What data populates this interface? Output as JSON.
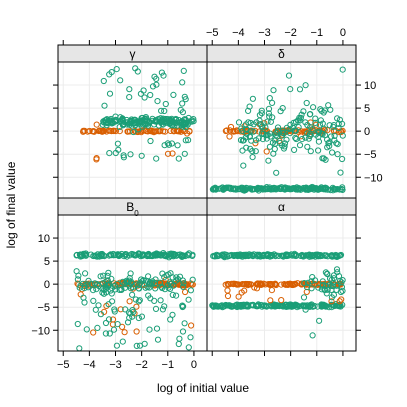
{
  "chart_data": {
    "type": "scatter",
    "layout": "2x2 lattice panels",
    "xlabel": "log of initial value",
    "ylabel": "log of final value",
    "xlim": [
      -5.2,
      0.5
    ],
    "ylim": [
      -14.5,
      15
    ],
    "x_ticks": [
      -5,
      -4,
      -3,
      -2,
      -1,
      0
    ],
    "y_ticks": [
      -10,
      -5,
      0,
      5,
      10
    ],
    "grid": true,
    "colors": {
      "mean": "#1b9e77",
      "median": "#d95f02",
      "strip_bg": "#e6e6e6",
      "grid": "#ececec"
    },
    "panels": [
      {
        "id": "gamma",
        "label": "γ",
        "row": 0,
        "col": 0,
        "series": [
          {
            "color": "#d95f02",
            "x_range": [
              -4.3,
              0
            ],
            "y_center": 0,
            "spread": 0.15,
            "count": 70,
            "outlier_count": 6,
            "outlier_y_range": [
              -8,
              2
            ]
          },
          {
            "color": "#1b9e77",
            "x_range": [
              -3.5,
              0
            ],
            "y_center": 2,
            "spread": 0.8,
            "count": 160,
            "outlier_count": 60,
            "outlier_y_range": [
              -6,
              14
            ]
          }
        ]
      },
      {
        "id": "delta",
        "label": "δ",
        "row": 0,
        "col": 1,
        "series": [
          {
            "color": "#1b9e77",
            "x_range": [
              -5,
              0
            ],
            "y_center": -12.5,
            "spread": 0.25,
            "count": 170,
            "outlier_count": 0,
            "outlier_y_range": [
              -12,
              -12
            ]
          },
          {
            "color": "#d95f02",
            "x_range": [
              -4.5,
              0
            ],
            "y_center": 0,
            "spread": 0.2,
            "count": 80,
            "outlier_count": 15,
            "outlier_y_range": [
              -5,
              2
            ]
          },
          {
            "color": "#1b9e77",
            "x_range": [
              -4,
              0
            ],
            "y_center": 0,
            "spread": 4.5,
            "count": 140,
            "outlier_count": 30,
            "outlier_y_range": [
              -10,
              14
            ]
          }
        ]
      },
      {
        "id": "B0",
        "label": "B",
        "label_sub": "0",
        "row": 1,
        "col": 0,
        "series": [
          {
            "color": "#1b9e77",
            "x_range": [
              -4.5,
              0
            ],
            "y_center": 6.3,
            "spread": 0.3,
            "count": 130,
            "outlier_count": 0,
            "outlier_y_range": [
              6,
              7
            ]
          },
          {
            "color": "#d95f02",
            "x_range": [
              -4.5,
              0
            ],
            "y_center": 0,
            "spread": 0.3,
            "count": 90,
            "outlier_count": 20,
            "outlier_y_range": [
              -11,
              1
            ]
          },
          {
            "color": "#1b9e77",
            "x_range": [
              -4.5,
              0
            ],
            "y_center": 0,
            "spread": 1.5,
            "count": 80,
            "outlier_count": 90,
            "outlier_y_range": [
              -14,
              3
            ]
          }
        ]
      },
      {
        "id": "alpha",
        "label": "α",
        "row": 1,
        "col": 1,
        "series": [
          {
            "color": "#1b9e77",
            "x_range": [
              -5,
              0
            ],
            "y_center": 6.2,
            "spread": 0.25,
            "count": 150,
            "outlier_count": 0,
            "outlier_y_range": [
              6,
              7
            ]
          },
          {
            "color": "#1b9e77",
            "x_range": [
              -5,
              0
            ],
            "y_center": -4.7,
            "spread": 0.25,
            "count": 160,
            "outlier_count": 0,
            "outlier_y_range": [
              -5,
              -4
            ]
          },
          {
            "color": "#d95f02",
            "x_range": [
              -4.5,
              0
            ],
            "y_center": 0,
            "spread": 0.15,
            "count": 110,
            "outlier_count": 15,
            "outlier_y_range": [
              -4,
              0
            ]
          },
          {
            "color": "#1b9e77",
            "x_range": [
              -1.5,
              0
            ],
            "y_center": 0,
            "spread": 2.5,
            "count": 40,
            "outlier_count": 5,
            "outlier_y_range": [
              -12,
              3
            ]
          }
        ]
      }
    ]
  }
}
